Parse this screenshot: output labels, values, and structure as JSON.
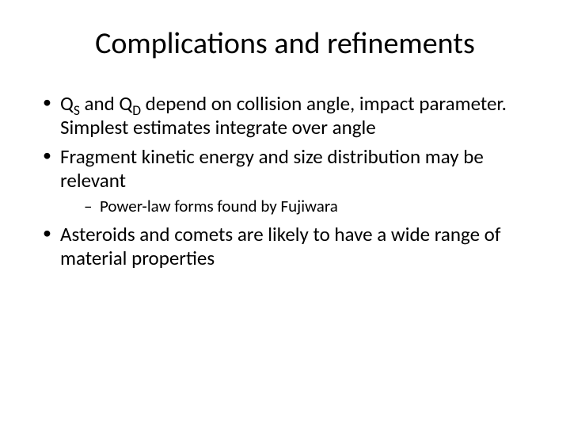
{
  "title": "Complications and refinements",
  "bullets": {
    "b1_prefix": "Q",
    "b1_sub1": "S",
    "b1_mid": " and Q",
    "b1_sub2": "D",
    "b1_rest": " depend on collision angle, impact parameter.  Simplest estimates integrate over angle",
    "b2": "Fragment kinetic energy and size distribution may be relevant",
    "b2_sub1": "Power-law forms found by Fujiwara",
    "b3": "Asteroids and comets are likely to have a wide range of material properties"
  },
  "style": {
    "background": "#ffffff",
    "text_color": "#000000",
    "title_fontsize": 38,
    "body_fontsize": 25,
    "sub_fontsize": 21
  }
}
